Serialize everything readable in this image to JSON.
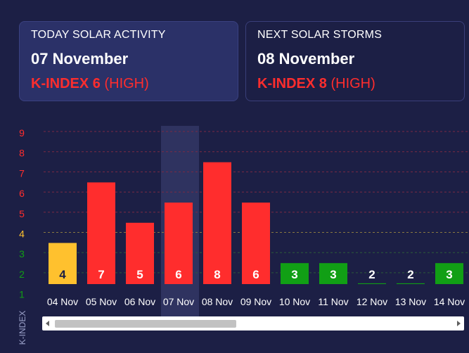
{
  "today_card": {
    "heading": "TODAY SOLAR ACTIVITY",
    "date": "07 November",
    "kindex": "K-INDEX 6",
    "level": "(HIGH)"
  },
  "next_card": {
    "heading": "NEXT SOLAR STORMS",
    "date": "08 November",
    "kindex": "K-INDEX 8",
    "level": "(HIGH)"
  },
  "colors": {
    "background": "#1c1f45",
    "high": "#ff2d2d",
    "moderate": "#ffc12e",
    "low": "#119f15",
    "highlight": "#2f3360"
  },
  "chart_data": {
    "type": "bar",
    "ylabel": "K-INDEX",
    "ylim": [
      1,
      9
    ],
    "yticks": [
      1,
      2,
      3,
      4,
      5,
      6,
      7,
      8,
      9
    ],
    "grid": true,
    "categories": [
      "04 Nov",
      "05 Nov",
      "06 Nov",
      "07 Nov",
      "08 Nov",
      "09 Nov",
      "10 Nov",
      "11 Nov",
      "12 Nov",
      "13 Nov",
      "14 Nov"
    ],
    "values": [
      4,
      7,
      5,
      6,
      8,
      6,
      3,
      3,
      2,
      2,
      3
    ],
    "highlighted_category": "07 Nov"
  }
}
